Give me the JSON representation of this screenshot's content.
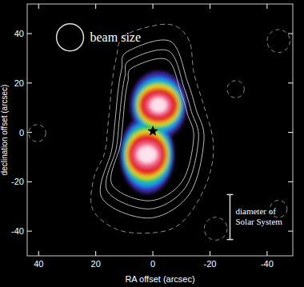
{
  "chart_data": {
    "type": "contour",
    "xlabel": "RA offset (arcsec)",
    "ylabel": "declination offset (arcsec)",
    "xlim": [
      44,
      -49
    ],
    "ylim": [
      -50,
      52
    ],
    "xticks": [
      40,
      20,
      0,
      -20,
      -40
    ],
    "yticks": [
      -40,
      -20,
      0,
      20,
      40
    ],
    "sources": [
      {
        "ra": -2,
        "dec": 11
      },
      {
        "ra": 2,
        "dec": -9
      }
    ],
    "levels": [
      {
        "color": "#3a1f7a",
        "rx": [
          10,
          9.5
        ],
        "ry": [
          14,
          16
        ]
      },
      {
        "color": "#2a3fd0",
        "rx": [
          9,
          9
        ],
        "ry": [
          12.5,
          14.5
        ]
      },
      {
        "color": "#18a8e8",
        "rx": [
          8.5,
          8.5
        ],
        "ry": [
          11,
          13
        ]
      },
      {
        "color": "#19c24a",
        "rx": [
          8,
          8
        ],
        "ry": [
          9.5,
          11.5
        ]
      },
      {
        "color": "#e8e628",
        "rx": [
          7.5,
          7.5
        ],
        "ry": [
          8.5,
          10
        ]
      },
      {
        "color": "#f08a1e",
        "rx": [
          7,
          7
        ],
        "ry": [
          7.5,
          9
        ]
      },
      {
        "color": "#e02424",
        "rx": [
          6.5,
          6.5
        ],
        "ry": [
          6.5,
          8
        ]
      },
      {
        "color": "#f0608a",
        "rx": [
          4.5,
          5
        ],
        "ry": [
          4.5,
          5.5
        ]
      },
      {
        "color": "#ffe0ec",
        "rx": [
          3,
          3.5
        ],
        "ry": [
          3,
          3.5
        ]
      }
    ],
    "contours": [
      {
        "line_style": "dashed",
        "color": "#8c8c8c",
        "ra": [
          10.6,
          1.7,
          -7.2,
          -12.8,
          -14.4,
          -17.8,
          -21.1,
          -20,
          -15,
          -8.1,
          1.7,
          12.8,
          21.1,
          20.6,
          16.9,
          15.6,
          14.2,
          12.8
        ],
        "dec": [
          38.5,
          42.7,
          43.4,
          36.9,
          23.9,
          11,
          -3.6,
          -16.5,
          -29.4,
          -38.2,
          -40.8,
          -39.2,
          -31.1,
          -18.1,
          -8.4,
          4.5,
          20.7,
          30.4
        ]
      },
      {
        "line_style": "solid",
        "color": "#b8b8b8",
        "ra": [
          9,
          -6.1,
          -12.2,
          -15.1,
          -17.9,
          -12.8,
          1.4,
          17.9,
          14.4,
          13.3,
          12.1,
          10.9
        ],
        "dec": [
          32.7,
          36.9,
          20.3,
          9.4,
          -3.1,
          -25,
          -34.7,
          -26.4,
          -7.1,
          3.8,
          17.6,
          25.8
        ]
      },
      {
        "line_style": "solid",
        "color": "#b8b8b8",
        "ra": [
          8.1,
          -5.5,
          -10.9,
          -13.5,
          -16,
          -11.4,
          1.3,
          16,
          12.8,
          11.9,
          10.8,
          9.7
        ],
        "dec": [
          29.3,
          33,
          18.2,
          8.4,
          -2.7,
          -22.3,
          -31,
          -23.6,
          -6.4,
          3.4,
          15.7,
          23.1
        ]
      },
      {
        "line_style": "solid",
        "color": "#b8b8b8",
        "ra": [
          7.2,
          -4.9,
          -9.8,
          -12.1,
          -14.3,
          -10.2,
          1.2,
          14.3,
          11.5,
          10.6,
          9.7,
          8.7
        ],
        "dec": [
          26.2,
          29.5,
          16.3,
          7.5,
          -2.4,
          -20,
          -27.7,
          -21.1,
          -5.7,
          3.1,
          14.1,
          20.7
        ]
      }
    ],
    "islands": {
      "line_style": "dashed",
      "color": "#8c8c8c",
      "ra": [
        -44,
        -29,
        40.5,
        -22,
        -44
      ],
      "dec": [
        37,
        17.5,
        -0.3,
        -39,
        -31
      ],
      "radius": [
        4,
        3,
        3,
        4,
        3
      ]
    },
    "star": {
      "ra": 0,
      "dec": 0.5,
      "marker": "star",
      "color": "#000000"
    },
    "beam": {
      "label": "beam size",
      "ra": 29,
      "dec": 38.5,
      "diameter": 9.5,
      "color": "#dddddd"
    },
    "scale_bar": {
      "label": [
        "diameter of",
        "Solar System"
      ],
      "ra": -27,
      "dec": [
        -43.4,
        -25.2
      ],
      "color": "#dddddd"
    }
  }
}
